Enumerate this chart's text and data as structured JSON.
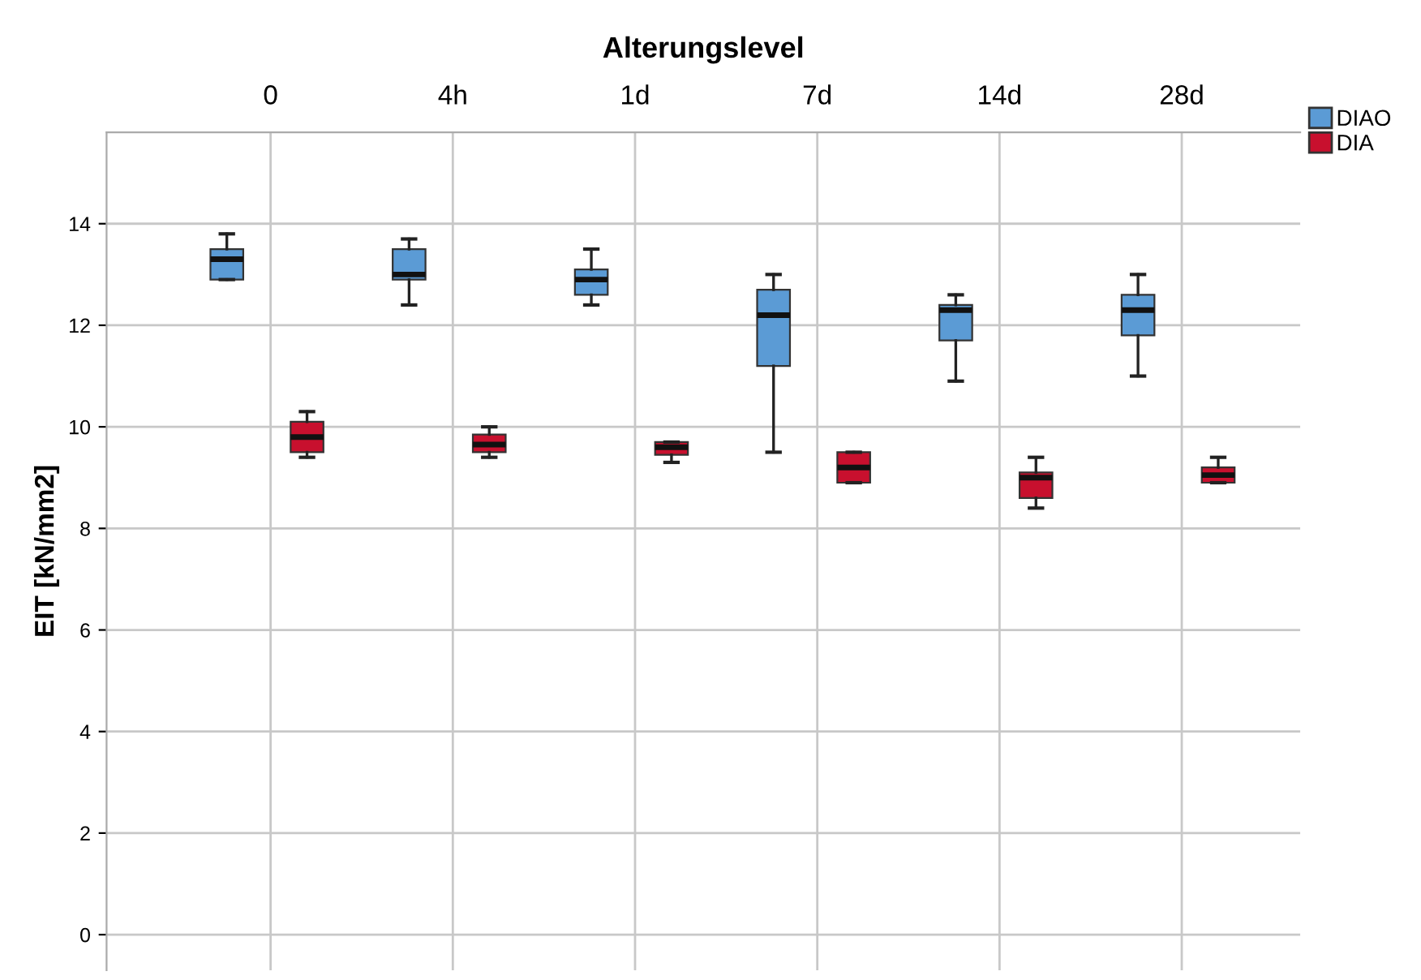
{
  "chart_data": {
    "type": "box",
    "xlabel": "Alterungslevel",
    "ylabel": "EIT [kN/mm2]",
    "categories": [
      "0",
      "4h",
      "1d",
      "7d",
      "14d",
      "28d"
    ],
    "ylim": [
      -0.7,
      15.8
    ],
    "yticks": [
      0,
      2,
      4,
      6,
      8,
      10,
      12,
      14
    ],
    "grid": true,
    "legend": "top right",
    "series": [
      {
        "name": "DIAO",
        "color": "#5b9bd5",
        "boxes": [
          {
            "low": 12.9,
            "q1": 12.9,
            "median": 13.3,
            "q3": 13.5,
            "high": 13.8
          },
          {
            "low": 12.4,
            "q1": 12.9,
            "median": 13.0,
            "q3": 13.5,
            "high": 13.7
          },
          {
            "low": 12.4,
            "q1": 12.6,
            "median": 12.9,
            "q3": 13.1,
            "high": 13.5
          },
          {
            "low": 9.5,
            "q1": 11.2,
            "median": 12.2,
            "q3": 12.7,
            "high": 13.0
          },
          {
            "low": 10.9,
            "q1": 11.7,
            "median": 12.3,
            "q3": 12.4,
            "high": 12.6
          },
          {
            "low": 11.0,
            "q1": 11.8,
            "median": 12.3,
            "q3": 12.6,
            "high": 13.0
          }
        ]
      },
      {
        "name": "DIA",
        "color": "#c8102e",
        "boxes": [
          {
            "low": 9.4,
            "q1": 9.5,
            "median": 9.8,
            "q3": 10.1,
            "high": 10.3
          },
          {
            "low": 9.4,
            "q1": 9.5,
            "median": 9.65,
            "q3": 9.85,
            "high": 10.0
          },
          {
            "low": 9.3,
            "q1": 9.45,
            "median": 9.6,
            "q3": 9.7,
            "high": 9.7
          },
          {
            "low": 8.9,
            "q1": 8.9,
            "median": 9.2,
            "q3": 9.5,
            "high": 9.5
          },
          {
            "low": 8.4,
            "q1": 8.6,
            "median": 9.0,
            "q3": 9.1,
            "high": 9.4
          },
          {
            "low": 8.9,
            "q1": 8.9,
            "median": 9.05,
            "q3": 9.2,
            "high": 9.4
          }
        ]
      }
    ]
  }
}
